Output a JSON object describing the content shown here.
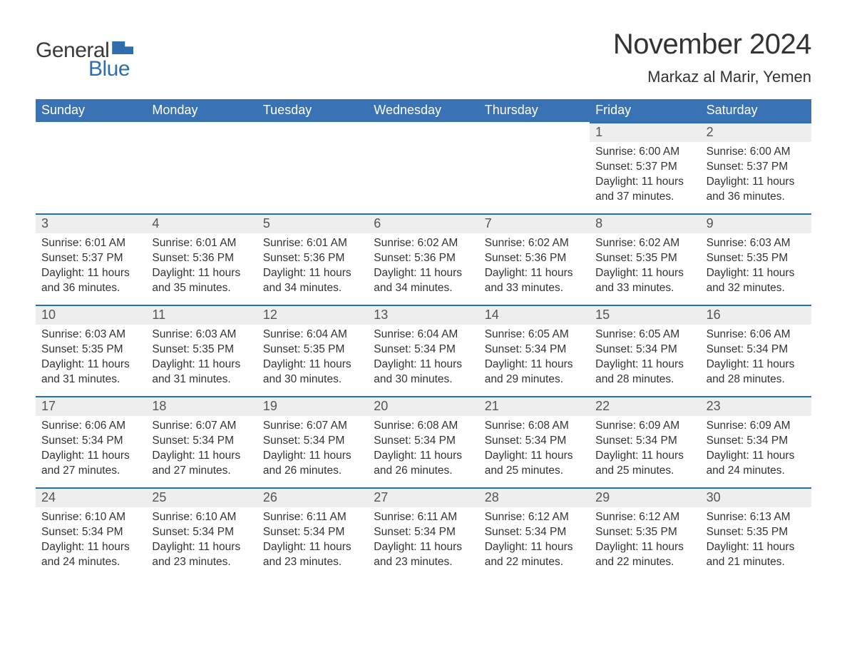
{
  "brand": {
    "word1": "General",
    "word2": "Blue",
    "accent_color": "#2f6eae"
  },
  "title": "November 2024",
  "location": "Markaz al Marir, Yemen",
  "header_bg": "#3973b4",
  "header_text_color": "#ffffff",
  "daynum_bg": "#eeeeee",
  "daynum_border": "#2f6eae",
  "text_color": "#333333",
  "weekdays": [
    "Sunday",
    "Monday",
    "Tuesday",
    "Wednesday",
    "Thursday",
    "Friday",
    "Saturday"
  ],
  "weeks": [
    [
      {
        "blank": true
      },
      {
        "blank": true
      },
      {
        "blank": true
      },
      {
        "blank": true
      },
      {
        "blank": true
      },
      {
        "day": 1,
        "sunrise": "6:00 AM",
        "sunset": "5:37 PM",
        "daylight": "11 hours and 37 minutes."
      },
      {
        "day": 2,
        "sunrise": "6:00 AM",
        "sunset": "5:37 PM",
        "daylight": "11 hours and 36 minutes."
      }
    ],
    [
      {
        "day": 3,
        "sunrise": "6:01 AM",
        "sunset": "5:37 PM",
        "daylight": "11 hours and 36 minutes."
      },
      {
        "day": 4,
        "sunrise": "6:01 AM",
        "sunset": "5:36 PM",
        "daylight": "11 hours and 35 minutes."
      },
      {
        "day": 5,
        "sunrise": "6:01 AM",
        "sunset": "5:36 PM",
        "daylight": "11 hours and 34 minutes."
      },
      {
        "day": 6,
        "sunrise": "6:02 AM",
        "sunset": "5:36 PM",
        "daylight": "11 hours and 34 minutes."
      },
      {
        "day": 7,
        "sunrise": "6:02 AM",
        "sunset": "5:36 PM",
        "daylight": "11 hours and 33 minutes."
      },
      {
        "day": 8,
        "sunrise": "6:02 AM",
        "sunset": "5:35 PM",
        "daylight": "11 hours and 33 minutes."
      },
      {
        "day": 9,
        "sunrise": "6:03 AM",
        "sunset": "5:35 PM",
        "daylight": "11 hours and 32 minutes."
      }
    ],
    [
      {
        "day": 10,
        "sunrise": "6:03 AM",
        "sunset": "5:35 PM",
        "daylight": "11 hours and 31 minutes."
      },
      {
        "day": 11,
        "sunrise": "6:03 AM",
        "sunset": "5:35 PM",
        "daylight": "11 hours and 31 minutes."
      },
      {
        "day": 12,
        "sunrise": "6:04 AM",
        "sunset": "5:35 PM",
        "daylight": "11 hours and 30 minutes."
      },
      {
        "day": 13,
        "sunrise": "6:04 AM",
        "sunset": "5:34 PM",
        "daylight": "11 hours and 30 minutes."
      },
      {
        "day": 14,
        "sunrise": "6:05 AM",
        "sunset": "5:34 PM",
        "daylight": "11 hours and 29 minutes."
      },
      {
        "day": 15,
        "sunrise": "6:05 AM",
        "sunset": "5:34 PM",
        "daylight": "11 hours and 28 minutes."
      },
      {
        "day": 16,
        "sunrise": "6:06 AM",
        "sunset": "5:34 PM",
        "daylight": "11 hours and 28 minutes."
      }
    ],
    [
      {
        "day": 17,
        "sunrise": "6:06 AM",
        "sunset": "5:34 PM",
        "daylight": "11 hours and 27 minutes."
      },
      {
        "day": 18,
        "sunrise": "6:07 AM",
        "sunset": "5:34 PM",
        "daylight": "11 hours and 27 minutes."
      },
      {
        "day": 19,
        "sunrise": "6:07 AM",
        "sunset": "5:34 PM",
        "daylight": "11 hours and 26 minutes."
      },
      {
        "day": 20,
        "sunrise": "6:08 AM",
        "sunset": "5:34 PM",
        "daylight": "11 hours and 26 minutes."
      },
      {
        "day": 21,
        "sunrise": "6:08 AM",
        "sunset": "5:34 PM",
        "daylight": "11 hours and 25 minutes."
      },
      {
        "day": 22,
        "sunrise": "6:09 AM",
        "sunset": "5:34 PM",
        "daylight": "11 hours and 25 minutes."
      },
      {
        "day": 23,
        "sunrise": "6:09 AM",
        "sunset": "5:34 PM",
        "daylight": "11 hours and 24 minutes."
      }
    ],
    [
      {
        "day": 24,
        "sunrise": "6:10 AM",
        "sunset": "5:34 PM",
        "daylight": "11 hours and 24 minutes."
      },
      {
        "day": 25,
        "sunrise": "6:10 AM",
        "sunset": "5:34 PM",
        "daylight": "11 hours and 23 minutes."
      },
      {
        "day": 26,
        "sunrise": "6:11 AM",
        "sunset": "5:34 PM",
        "daylight": "11 hours and 23 minutes."
      },
      {
        "day": 27,
        "sunrise": "6:11 AM",
        "sunset": "5:34 PM",
        "daylight": "11 hours and 23 minutes."
      },
      {
        "day": 28,
        "sunrise": "6:12 AM",
        "sunset": "5:34 PM",
        "daylight": "11 hours and 22 minutes."
      },
      {
        "day": 29,
        "sunrise": "6:12 AM",
        "sunset": "5:35 PM",
        "daylight": "11 hours and 22 minutes."
      },
      {
        "day": 30,
        "sunrise": "6:13 AM",
        "sunset": "5:35 PM",
        "daylight": "11 hours and 21 minutes."
      }
    ]
  ],
  "labels": {
    "sunrise": "Sunrise:",
    "sunset": "Sunset:",
    "daylight": "Daylight:"
  }
}
